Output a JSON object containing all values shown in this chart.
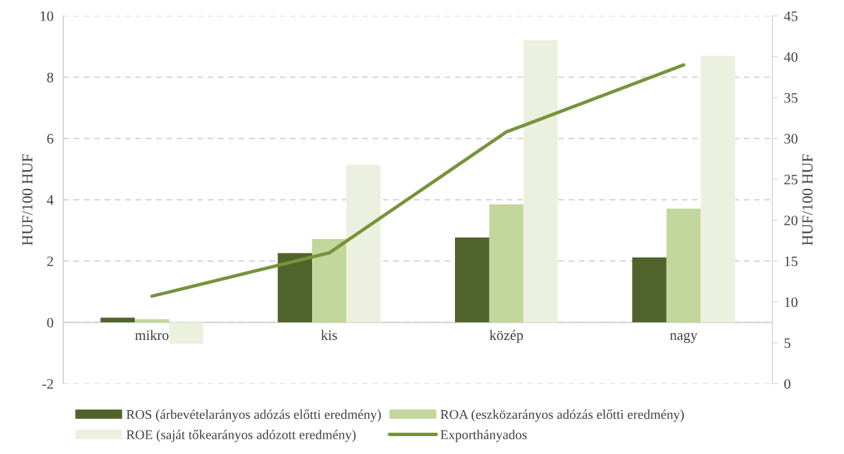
{
  "chart_data": {
    "type": "bar",
    "categories": [
      "mikro",
      "kis",
      "közép",
      "nagy"
    ],
    "ylabel": "HUF/100 HUF",
    "y2label": "HUF/100 HUF",
    "ylim": [
      -2,
      10
    ],
    "yticks": [
      -2,
      0,
      2,
      4,
      6,
      8,
      10
    ],
    "y2lim": [
      0,
      45
    ],
    "y2ticks": [
      0,
      5,
      10,
      15,
      20,
      25,
      30,
      35,
      40,
      45
    ],
    "grid": "y",
    "legend": "bottom",
    "series": [
      {
        "name": "ROS (árbevételarányos adózás előtti eredmény)",
        "color": "#50632a",
        "values": [
          0.15,
          2.26,
          2.77,
          2.12
        ]
      },
      {
        "name": "ROA (eszközarányos adózás előtti eredmény)",
        "color": "#c3d69b",
        "values": [
          0.1,
          2.72,
          3.85,
          3.71
        ]
      },
      {
        "name": "ROE (saját tőkearányos adózott eredmény)",
        "color": "#ebf1de",
        "values": [
          -0.7,
          5.14,
          9.21,
          8.7
        ]
      },
      {
        "name": "Exporthányados",
        "type": "line",
        "axis": "y2",
        "color": "#77933c",
        "values": [
          10.7,
          16.0,
          30.8,
          39.0
        ]
      }
    ]
  }
}
